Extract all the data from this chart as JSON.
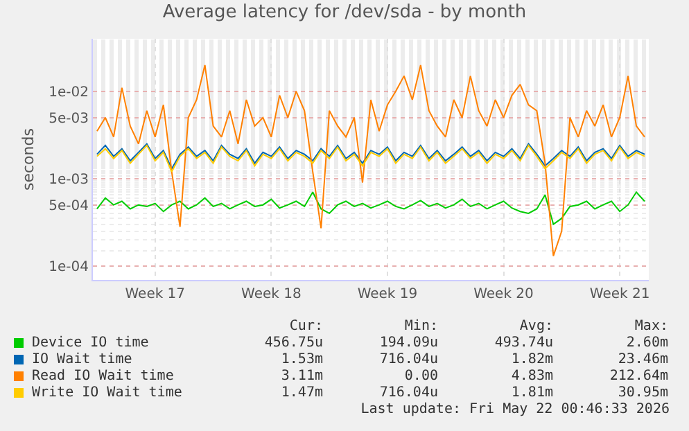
{
  "chart_data": {
    "type": "line",
    "title": "Average latency for /dev/sda - by month",
    "ylabel": "seconds",
    "categories": [
      null,
      null,
      null,
      null,
      null,
      null,
      null,
      "Week 17",
      null,
      null,
      null,
      null,
      null,
      null,
      null,
      null,
      null,
      null,
      null,
      null,
      null,
      "Week 18",
      null,
      null,
      null,
      null,
      null,
      null,
      null,
      null,
      null,
      null,
      null,
      null,
      null,
      "Week 19",
      null,
      null,
      null,
      null,
      null,
      null,
      null,
      null,
      null,
      null,
      null,
      null,
      null,
      "Week 20",
      null,
      null,
      null,
      null,
      null,
      null,
      null,
      null,
      null,
      null,
      null,
      null,
      null,
      "Week 21",
      null,
      null,
      null
    ],
    "ylim": [
      6.9e-05,
      0.04
    ],
    "yticks": [
      {
        "value": 0.0001,
        "label": "1e-04"
      },
      {
        "value": 0.0005,
        "label": "5e-04"
      },
      {
        "value": 0.001,
        "label": "1e-03"
      },
      {
        "value": 0.005,
        "label": "5e-03"
      },
      {
        "value": 0.01,
        "label": "1e-02"
      }
    ],
    "log": "y",
    "grid": true,
    "legend": "bottom",
    "marker": "none",
    "line_style": "solid",
    "series": [
      {
        "name": "Device IO time",
        "color": "#00cc00",
        "values": [
          0.00045,
          0.0006,
          0.0005,
          0.00055,
          0.00045,
          0.0005,
          0.00048,
          0.00052,
          0.00042,
          0.0005,
          0.00055,
          0.00045,
          0.0005,
          0.0006,
          0.00048,
          0.00052,
          0.00045,
          0.0005,
          0.00055,
          0.00048,
          0.0005,
          0.00058,
          0.00046,
          0.0005,
          0.00055,
          0.00048,
          0.0007,
          0.00045,
          0.0004,
          0.0005,
          0.00055,
          0.00048,
          0.00052,
          0.00046,
          0.0005,
          0.00055,
          0.00048,
          0.00045,
          0.0005,
          0.00056,
          0.00048,
          0.00052,
          0.00046,
          0.0005,
          0.00058,
          0.00048,
          0.00052,
          0.00045,
          0.0005,
          0.00055,
          0.00046,
          0.00042,
          0.0004,
          0.00045,
          0.00065,
          0.0003,
          0.00035,
          0.00048,
          0.0005,
          0.00055,
          0.00045,
          0.0005,
          0.00055,
          0.00042,
          0.0005,
          0.0007,
          0.00055
        ]
      },
      {
        "name": "IO Wait time",
        "color": "#0066b3",
        "values": [
          0.0019,
          0.0024,
          0.0018,
          0.0022,
          0.0016,
          0.002,
          0.0025,
          0.0017,
          0.0021,
          0.0013,
          0.0019,
          0.0023,
          0.0018,
          0.0021,
          0.0016,
          0.0024,
          0.0019,
          0.0017,
          0.0022,
          0.0015,
          0.002,
          0.0018,
          0.0023,
          0.0017,
          0.0021,
          0.0019,
          0.0016,
          0.0022,
          0.0018,
          0.0024,
          0.0017,
          0.002,
          0.0015,
          0.0021,
          0.0019,
          0.0023,
          0.0016,
          0.002,
          0.0018,
          0.0024,
          0.0017,
          0.0021,
          0.0016,
          0.0019,
          0.0023,
          0.0018,
          0.0021,
          0.0016,
          0.002,
          0.0018,
          0.0022,
          0.0017,
          0.0025,
          0.0019,
          0.0014,
          0.0017,
          0.0021,
          0.0018,
          0.0023,
          0.0016,
          0.002,
          0.0022,
          0.0017,
          0.0024,
          0.0018,
          0.0021,
          0.0019
        ]
      },
      {
        "name": "Read IO Wait time",
        "color": "#ff8000",
        "values": [
          0.0035,
          0.005,
          0.003,
          0.011,
          0.004,
          0.0025,
          0.006,
          0.003,
          0.007,
          0.0012,
          0.00028,
          0.005,
          0.008,
          0.02,
          0.004,
          0.003,
          0.006,
          0.0025,
          0.008,
          0.004,
          0.005,
          0.003,
          0.009,
          0.005,
          0.01,
          0.006,
          0.0012,
          0.00027,
          0.006,
          0.004,
          0.003,
          0.005,
          0.0009,
          0.008,
          0.0035,
          0.007,
          0.01,
          0.015,
          0.008,
          0.02,
          0.006,
          0.004,
          0.003,
          0.008,
          0.005,
          0.015,
          0.006,
          0.004,
          0.008,
          0.005,
          0.009,
          0.012,
          0.007,
          0.006,
          0.0015,
          0.00013,
          0.00025,
          0.005,
          0.003,
          0.006,
          0.004,
          0.007,
          0.003,
          0.005,
          0.015,
          0.004,
          0.003
        ]
      },
      {
        "name": "Write IO Wait time",
        "color": "#ffcc00",
        "values": [
          0.0018,
          0.0022,
          0.0017,
          0.0021,
          0.0015,
          0.0019,
          0.0024,
          0.0016,
          0.002,
          0.0012,
          0.0018,
          0.0022,
          0.0017,
          0.002,
          0.0015,
          0.0023,
          0.0018,
          0.0016,
          0.0021,
          0.0014,
          0.0019,
          0.0017,
          0.0022,
          0.0016,
          0.002,
          0.0018,
          0.0015,
          0.0021,
          0.0017,
          0.0023,
          0.0016,
          0.0019,
          0.0014,
          0.002,
          0.0018,
          0.0022,
          0.0015,
          0.0019,
          0.0017,
          0.0023,
          0.0016,
          0.002,
          0.0015,
          0.0018,
          0.0022,
          0.0017,
          0.002,
          0.0015,
          0.0019,
          0.0017,
          0.0021,
          0.0016,
          0.0024,
          0.0018,
          0.0013,
          0.0016,
          0.002,
          0.0017,
          0.0022,
          0.0015,
          0.0019,
          0.0021,
          0.0016,
          0.0023,
          0.0017,
          0.002,
          0.0018
        ]
      }
    ],
    "annotations": [
      "Cur:",
      "Min:",
      "Avg:",
      "Max:",
      "456.75u",
      "194.09u",
      "493.74u",
      "2.60m",
      "1.53m",
      "716.04u",
      "1.82m",
      "23.46m",
      "3.11m",
      "0.00",
      "4.83m",
      "212.64m",
      "1.47m",
      "716.04u",
      "1.81m",
      "30.95m",
      "Last update: Fri May 22 00:46:33 2026"
    ]
  }
}
